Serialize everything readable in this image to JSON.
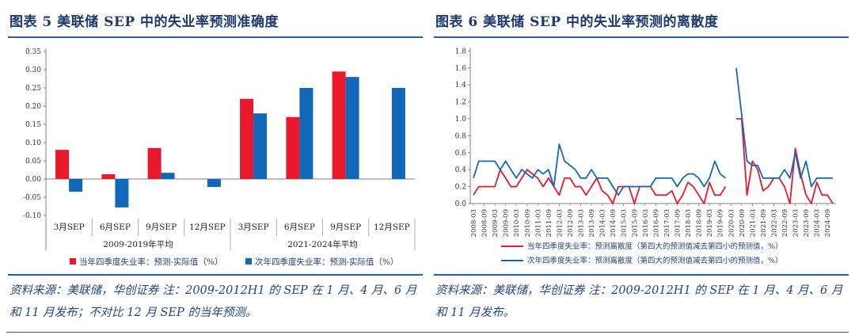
{
  "theme": {
    "title_color": "#1c3a6d",
    "rule_color": "#2e5b9f",
    "note_color": "#26457d",
    "axis_color": "#808080",
    "red": "#e8192c",
    "blue": "#1268b8"
  },
  "figure5": {
    "title": "图表 5  美联储 SEP 中的失业率预测准确度",
    "note": "资料来源：美联储，华创证券  注：2009-2012H1 的 SEP 在 1 月、4 月、6 月和 11 月发布；不对比 12 月 SEP 的当年预测。"
  },
  "figure6": {
    "title": "图表 6  美联储 SEP 中的失业率预测的离散度",
    "note": "资料来源：美联储，华创证券  注：2009-2012H1 的 SEP 在 1 月、4 月、6 月和 11 月发布。"
  },
  "chart_data": [
    {
      "type": "bar",
      "title": "美联储 SEP 中的失业率预测准确度",
      "groups": [
        "2009-2019年平均",
        "2021-2024年平均"
      ],
      "categories": [
        "3月SEP",
        "6月SEP",
        "9月SEP",
        "12月SEP",
        "3月SEP",
        "6月SEP",
        "9月SEP",
        "12月SEP"
      ],
      "series": [
        {
          "name": "当年四季度失业率：预测-实际值（%）",
          "color": "#e8192c",
          "values": [
            0.08,
            0.013,
            0.085,
            null,
            0.22,
            0.17,
            0.295,
            null
          ]
        },
        {
          "name": "次年四季度失业率：预测-实际值（%）",
          "color": "#1268b8",
          "values": [
            -0.035,
            -0.078,
            0.017,
            -0.022,
            0.18,
            0.25,
            0.28,
            0.25
          ]
        }
      ],
      "ylim": [
        -0.1,
        0.35
      ],
      "ytick_step": 0.05,
      "grid": false,
      "legend_position": "bottom"
    },
    {
      "type": "line",
      "title": "美联储 SEP 中的失业率预测的离散度",
      "x": [
        "2008-03",
        "2008-06",
        "2008-09",
        "2008-12",
        "2009-03",
        "2009-06",
        "2009-09",
        "2009-12",
        "2010-03",
        "2010-06",
        "2010-09",
        "2010-12",
        "2011-03",
        "2011-06",
        "2011-09",
        "2011-12",
        "2012-03",
        "2012-06",
        "2012-09",
        "2012-12",
        "2013-03",
        "2013-06",
        "2013-09",
        "2013-12",
        "2014-03",
        "2014-06",
        "2014-09",
        "2014-12",
        "2015-03",
        "2015-06",
        "2015-09",
        "2015-12",
        "2016-03",
        "2016-06",
        "2016-09",
        "2016-12",
        "2017-03",
        "2017-06",
        "2017-09",
        "2017-12",
        "2018-03",
        "2018-06",
        "2018-09",
        "2018-12",
        "2019-03",
        "2019-06",
        "2019-09",
        "2019-12",
        "2020-03",
        "2020-06",
        "2020-09",
        "2020-12",
        "2021-03",
        "2021-06",
        "2021-09",
        "2021-12",
        "2022-03",
        "2022-06",
        "2022-09",
        "2022-12",
        "2023-03",
        "2023-06",
        "2023-09",
        "2023-12",
        "2024-03",
        "2024-06",
        "2024-09",
        "2024-12"
      ],
      "tick_every": 2,
      "series": [
        {
          "name": "当年四季度失业率：预测离散度（第四大的预测值减去第四小的预测值，%）",
          "color": "#e8192c",
          "values": [
            0.1,
            0.2,
            0.2,
            0.2,
            0.2,
            0.4,
            0.3,
            0.2,
            0.2,
            0.3,
            0.4,
            0.35,
            0.3,
            0.2,
            0.3,
            0.2,
            0.1,
            0.3,
            0.3,
            0.2,
            0.2,
            0.1,
            0.2,
            0.3,
            0.15,
            0.1,
            0.0,
            0.2,
            0.2,
            0.2,
            0.0,
            0.2,
            0.2,
            0.2,
            0.1,
            0.1,
            0.1,
            0.15,
            0.0,
            0.1,
            0.25,
            0.2,
            0.1,
            0.0,
            0.25,
            0.1,
            0.1,
            0.2,
            null,
            1.0,
            1.0,
            0.1,
            0.5,
            0.4,
            0.15,
            0.2,
            0.3,
            0.3,
            0.2,
            0.0,
            0.65,
            0.35,
            0.1,
            0.0,
            0.25,
            0.1,
            0.1,
            0.0
          ]
        },
        {
          "name": "次年四季度失业率：预测离散度（第四大的预测值减去第四小的预测值，%）",
          "color": "#1268b8",
          "values": [
            0.3,
            0.5,
            0.5,
            0.5,
            0.5,
            0.4,
            0.5,
            0.4,
            0.3,
            0.4,
            0.35,
            0.3,
            0.4,
            0.35,
            0.4,
            0.2,
            0.7,
            0.5,
            0.45,
            0.4,
            0.3,
            0.3,
            0.4,
            0.3,
            0.3,
            0.3,
            0.2,
            0.1,
            0.2,
            0.2,
            0.2,
            0.2,
            0.2,
            0.2,
            0.3,
            0.3,
            0.3,
            0.3,
            0.2,
            0.3,
            0.35,
            0.35,
            0.3,
            0.2,
            0.3,
            0.5,
            0.35,
            0.3,
            null,
            1.6,
            1.05,
            0.5,
            0.45,
            0.45,
            0.3,
            0.3,
            0.3,
            0.3,
            0.4,
            0.3,
            0.6,
            0.3,
            0.5,
            0.2,
            0.3,
            0.3,
            0.3,
            0.3
          ]
        }
      ],
      "ylim": [
        0,
        1.8
      ],
      "ytick_step": 0.2,
      "grid": false,
      "legend_position": "bottom"
    }
  ]
}
